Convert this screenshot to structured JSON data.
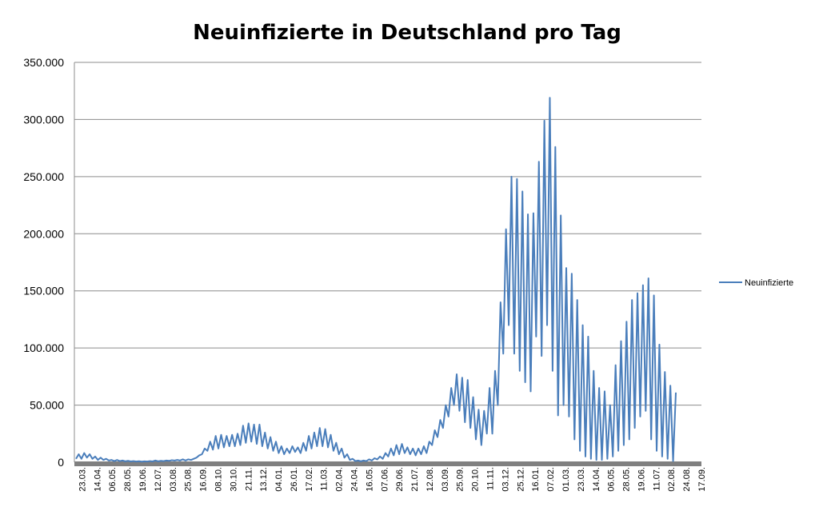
{
  "chart_data": {
    "type": "line",
    "title": "Neuinfizierte in Deutschland pro Tag",
    "xlabel": "",
    "ylabel": "",
    "ylim": [
      0,
      350000
    ],
    "yticks": [
      {
        "value": 0,
        "label": "0"
      },
      {
        "value": 50000,
        "label": "50.000"
      },
      {
        "value": 100000,
        "label": "100.000"
      },
      {
        "value": 150000,
        "label": "150.000"
      },
      {
        "value": 200000,
        "label": "200.000"
      },
      {
        "value": 250000,
        "label": "250.000"
      },
      {
        "value": 300000,
        "label": "300.000"
      },
      {
        "value": 350000,
        "label": "350.000"
      }
    ],
    "x_tick_labels": [
      "23.03.",
      "14.04.",
      "06.05.",
      "28.05.",
      "19.06.",
      "12.07.",
      "03.08.",
      "25.08.",
      "16.09.",
      "08.10.",
      "30.10.",
      "21.11.",
      "13.12.",
      "04.01.",
      "26.01.",
      "17.02.",
      "11.03.",
      "02.04.",
      "24.04.",
      "16.05.",
      "07.06.",
      "29.06.",
      "21.07.",
      "12.08.",
      "03.09.",
      "25.09.",
      "20.10.",
      "11.11.",
      "03.12.",
      "25.12.",
      "16.01.",
      "07.02.",
      "01.03.",
      "23.03.",
      "14.04.",
      "06.05.",
      "28.05.",
      "19.06.",
      "11.07.",
      "02.08.",
      "24.08.",
      "17.09."
    ],
    "grid": true,
    "legend_position": "right",
    "series": [
      {
        "name": "Neuinfizierte",
        "color": "#4a7ebb",
        "values": [
          3000,
          7000,
          3000,
          8000,
          4000,
          7000,
          3000,
          5000,
          2000,
          4000,
          2000,
          3000,
          1500,
          2000,
          1000,
          2000,
          1000,
          1500,
          800,
          1200,
          700,
          1000,
          600,
          900,
          500,
          800,
          600,
          1000,
          700,
          1500,
          800,
          1200,
          1000,
          1500,
          1200,
          1800,
          1500,
          2000,
          1500,
          2500,
          1500,
          2500,
          2000,
          3000,
          4000,
          6000,
          7000,
          12000,
          10000,
          18000,
          11000,
          23000,
          12000,
          24000,
          13000,
          23000,
          14000,
          24000,
          14000,
          25000,
          15000,
          32000,
          17000,
          34000,
          18000,
          33000,
          16000,
          33000,
          14000,
          26000,
          12000,
          22000,
          10000,
          18000,
          8000,
          14000,
          7000,
          12000,
          8000,
          14000,
          9000,
          13000,
          8000,
          17000,
          10000,
          23000,
          12000,
          26000,
          14000,
          30000,
          14000,
          29000,
          13000,
          24000,
          10000,
          17000,
          7000,
          12000,
          4000,
          7000,
          2000,
          3000,
          1000,
          1500,
          800,
          1500,
          1000,
          2500,
          1500,
          3500,
          2500,
          5000,
          3000,
          8000,
          5000,
          12000,
          6000,
          15000,
          7000,
          16000,
          8000,
          13000,
          7000,
          12000,
          6000,
          12000,
          7000,
          14000,
          8000,
          18000,
          15000,
          28000,
          22000,
          37000,
          30000,
          50000,
          40000,
          65000,
          50000,
          77000,
          45000,
          74000,
          35000,
          72000,
          30000,
          57000,
          20000,
          46000,
          15000,
          45000,
          25000,
          65000,
          25000,
          80000,
          50000,
          140000,
          95000,
          204000,
          120000,
          250000,
          95000,
          248000,
          80000,
          237000,
          70000,
          217000,
          62000,
          218000,
          110000,
          263000,
          93000,
          299000,
          120000,
          319000,
          80000,
          276000,
          41000,
          216000,
          50000,
          170000,
          40000,
          165000,
          20000,
          142000,
          10000,
          120000,
          5000,
          110000,
          3000,
          80000,
          2000,
          65000,
          2000,
          62000,
          3000,
          50000,
          5000,
          85000,
          10000,
          106000,
          15000,
          123000,
          20000,
          142000,
          30000,
          148000,
          40000,
          155000,
          45000,
          161000,
          20000,
          146000,
          10000,
          103000,
          5000,
          79000,
          3000,
          67000,
          1000,
          61000
        ]
      }
    ]
  }
}
